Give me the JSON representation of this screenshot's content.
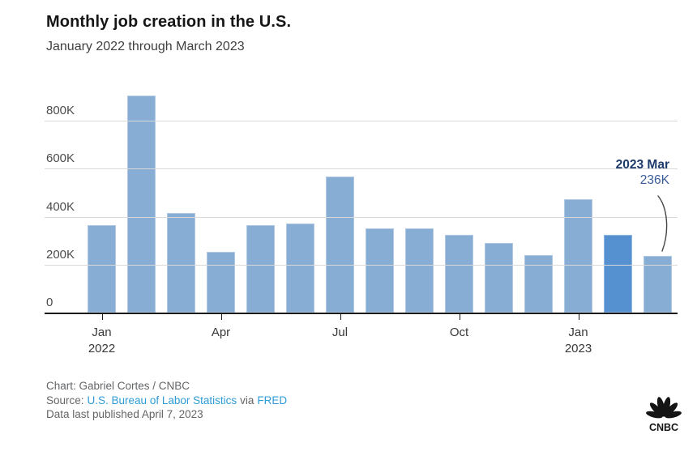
{
  "header": {
    "title": "Monthly job creation in the U.S.",
    "subtitle": "January 2022 through March 2023"
  },
  "chart_data": {
    "type": "bar",
    "title": "Monthly job creation in the U.S.",
    "subtitle": "January 2022 through March 2023",
    "xlabel": "",
    "ylabel": "",
    "unit": "thousands of jobs",
    "grid": true,
    "legend": "none",
    "ylim": [
      0,
      950
    ],
    "categories": [
      "Jan 2022",
      "Feb 2022",
      "Mar 2022",
      "Apr 2022",
      "May 2022",
      "Jun 2022",
      "Jul 2022",
      "Aug 2022",
      "Sep 2022",
      "Oct 2022",
      "Nov 2022",
      "Dec 2022",
      "Jan 2023",
      "Feb 2023",
      "Mar 2023"
    ],
    "values": [
      364,
      904,
      414,
      254,
      364,
      370,
      568,
      352,
      350,
      324,
      290,
      239,
      472,
      326,
      236
    ],
    "y_ticks": [
      {
        "value": 0,
        "label": "0"
      },
      {
        "value": 200,
        "label": "200K"
      },
      {
        "value": 400,
        "label": "400K"
      },
      {
        "value": 600,
        "label": "600K"
      },
      {
        "value": 800,
        "label": "800K"
      }
    ],
    "x_ticks": [
      {
        "index": 0,
        "lines": [
          "Jan",
          "2022"
        ]
      },
      {
        "index": 3,
        "lines": [
          "Apr"
        ]
      },
      {
        "index": 6,
        "lines": [
          "Jul"
        ]
      },
      {
        "index": 9,
        "lines": [
          "Oct"
        ]
      },
      {
        "index": 12,
        "lines": [
          "Jan",
          "2023"
        ]
      }
    ],
    "bar_color": "#88add5",
    "highlight_color": "#5591d1",
    "highlight_index": 13,
    "annotation": {
      "label": "2023 Mar",
      "value_label": "236K",
      "target_category": "Mar 2023",
      "label_color": "#1d3a6b",
      "value_color": "#3a5c99"
    }
  },
  "footer": {
    "credit": "Chart: Gabriel Cortes / CNBC",
    "source_prefix": "Source:",
    "source_link": "U.S. Bureau of Labor Statistics",
    "via": "via",
    "source_link2": "FRED",
    "updated": "Data last published April 7, 2023",
    "link_color": "#2e9bd6",
    "logo_text": "CNBC"
  }
}
